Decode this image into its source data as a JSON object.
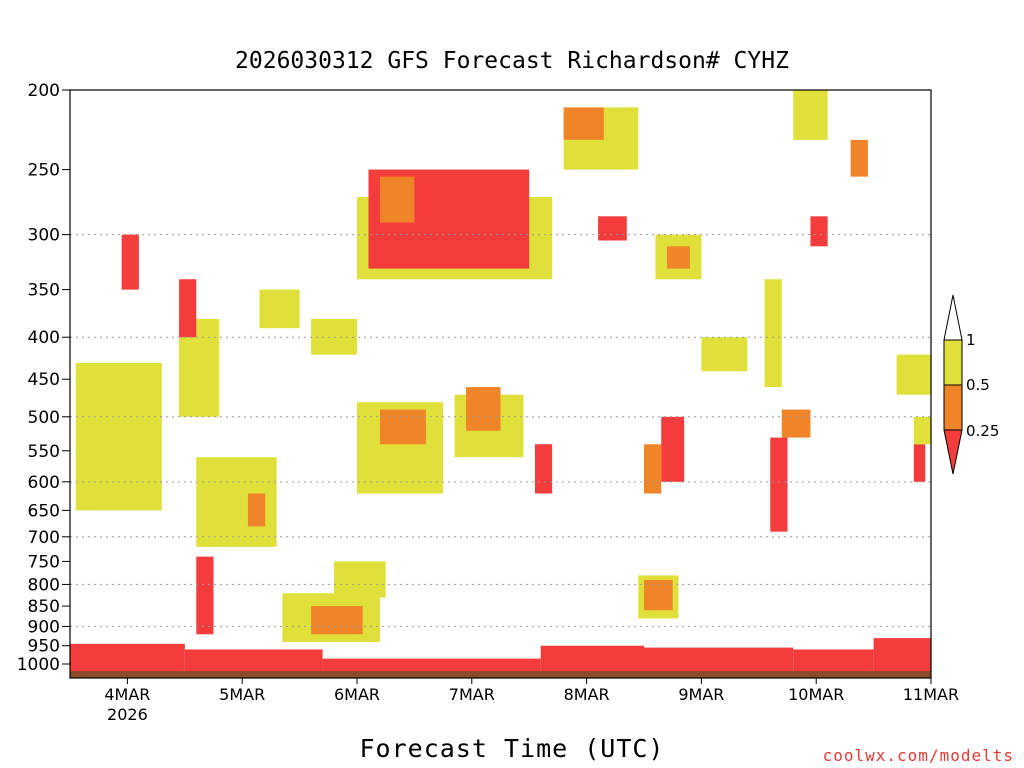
{
  "chart_data": {
    "type": "heatmap",
    "title": "2026030312 GFS Forecast Richardson# CYHZ",
    "xlabel": "Forecast Time (UTC)",
    "ylabel": "",
    "x_range_days": [
      3.5,
      11.0
    ],
    "x_ticks": [
      {
        "value": 4,
        "label": "4MAR",
        "sublabel": "2026"
      },
      {
        "value": 5,
        "label": "5MAR"
      },
      {
        "value": 6,
        "label": "6MAR"
      },
      {
        "value": 7,
        "label": "7MAR"
      },
      {
        "value": 8,
        "label": "8MAR"
      },
      {
        "value": 9,
        "label": "9MAR"
      },
      {
        "value": 10,
        "label": "10MAR"
      },
      {
        "value": 11,
        "label": "11MAR"
      }
    ],
    "y_range_hPa": [
      1040,
      200
    ],
    "y_scale": "log",
    "y_ticks": [
      200,
      250,
      300,
      350,
      400,
      450,
      500,
      550,
      600,
      650,
      700,
      750,
      800,
      850,
      900,
      950,
      1000
    ],
    "gridlines": [
      300,
      400,
      500,
      600,
      700,
      800,
      900
    ],
    "grid": true,
    "colorbar": {
      "labels": [
        "1",
        "0.5",
        "0.25"
      ],
      "bins": [
        {
          "range": "0.5-1",
          "color": "#e0e03a"
        },
        {
          "range": "0.25-0.5",
          "color": "#f08428"
        },
        {
          "range": "<0.25",
          "color": "#f53c3c"
        }
      ],
      "ground_color": "#8b4a2a"
    },
    "regions": [
      {
        "color": "#f53c3c",
        "x": [
          3.5,
          4.5
        ],
        "p": [
          945,
          1030
        ]
      },
      {
        "color": "#f53c3c",
        "x": [
          4.5,
          5.7
        ],
        "p": [
          960,
          1030
        ]
      },
      {
        "color": "#f53c3c",
        "x": [
          5.7,
          7.6
        ],
        "p": [
          985,
          1030
        ]
      },
      {
        "color": "#f53c3c",
        "x": [
          7.6,
          8.5
        ],
        "p": [
          950,
          1030
        ]
      },
      {
        "color": "#f53c3c",
        "x": [
          8.5,
          9.8
        ],
        "p": [
          955,
          1025
        ]
      },
      {
        "color": "#f53c3c",
        "x": [
          9.8,
          10.5
        ],
        "p": [
          960,
          1025
        ]
      },
      {
        "color": "#f53c3c",
        "x": [
          10.5,
          11.0
        ],
        "p": [
          930,
          1025
        ]
      },
      {
        "color": "#e0e03a",
        "x": [
          5.35,
          6.2
        ],
        "p": [
          820,
          940
        ]
      },
      {
        "color": "#e0e03a",
        "x": [
          5.8,
          6.25
        ],
        "p": [
          750,
          830
        ]
      },
      {
        "color": "#f08428",
        "x": [
          5.6,
          6.05
        ],
        "p": [
          850,
          920
        ]
      },
      {
        "color": "#e0e03a",
        "x": [
          3.55,
          4.3
        ],
        "p": [
          430,
          650
        ]
      },
      {
        "color": "#e0e03a",
        "x": [
          4.45,
          4.8
        ],
        "p": [
          380,
          500
        ]
      },
      {
        "color": "#e0e03a",
        "x": [
          4.6,
          5.3
        ],
        "p": [
          560,
          720
        ]
      },
      {
        "color": "#f08428",
        "x": [
          5.05,
          5.2
        ],
        "p": [
          620,
          680
        ]
      },
      {
        "color": "#e0e03a",
        "x": [
          5.15,
          5.5
        ],
        "p": [
          350,
          390
        ]
      },
      {
        "color": "#e0e03a",
        "x": [
          5.6,
          6.0
        ],
        "p": [
          380,
          420
        ]
      },
      {
        "color": "#e0e03a",
        "x": [
          6.0,
          6.75
        ],
        "p": [
          480,
          620
        ]
      },
      {
        "color": "#f08428",
        "x": [
          6.2,
          6.6
        ],
        "p": [
          490,
          540
        ]
      },
      {
        "color": "#e0e03a",
        "x": [
          6.85,
          7.45
        ],
        "p": [
          470,
          560
        ]
      },
      {
        "color": "#f08428",
        "x": [
          6.95,
          7.25
        ],
        "p": [
          460,
          520
        ]
      },
      {
        "color": "#e0e03a",
        "x": [
          6.0,
          7.7
        ],
        "p": [
          270,
          340
        ]
      },
      {
        "color": "#f53c3c",
        "x": [
          6.1,
          7.5
        ],
        "p": [
          250,
          330
        ]
      },
      {
        "color": "#f08428",
        "x": [
          6.2,
          6.5
        ],
        "p": [
          255,
          290
        ]
      },
      {
        "color": "#e0e03a",
        "x": [
          7.8,
          8.45
        ],
        "p": [
          210,
          250
        ]
      },
      {
        "color": "#f08428",
        "x": [
          7.8,
          8.15
        ],
        "p": [
          210,
          230
        ]
      },
      {
        "color": "#f53c3c",
        "x": [
          8.1,
          8.35
        ],
        "p": [
          285,
          305
        ]
      },
      {
        "color": "#e0e03a",
        "x": [
          8.6,
          9.0
        ],
        "p": [
          300,
          340
        ]
      },
      {
        "color": "#f08428",
        "x": [
          8.7,
          8.9
        ],
        "p": [
          310,
          330
        ]
      },
      {
        "color": "#f53c3c",
        "x": [
          8.65,
          8.85
        ],
        "p": [
          500,
          600
        ]
      },
      {
        "color": "#f08428",
        "x": [
          8.5,
          8.65
        ],
        "p": [
          540,
          620
        ]
      },
      {
        "color": "#e0e03a",
        "x": [
          8.45,
          8.8
        ],
        "p": [
          780,
          880
        ]
      },
      {
        "color": "#f08428",
        "x": [
          8.5,
          8.75
        ],
        "p": [
          790,
          860
        ]
      },
      {
        "color": "#e0e03a",
        "x": [
          9.0,
          9.4
        ],
        "p": [
          400,
          440
        ]
      },
      {
        "color": "#f53c3c",
        "x": [
          9.6,
          9.75
        ],
        "p": [
          530,
          690
        ]
      },
      {
        "color": "#f08428",
        "x": [
          9.7,
          9.95
        ],
        "p": [
          490,
          530
        ]
      },
      {
        "color": "#f53c3c",
        "x": [
          9.95,
          10.1
        ],
        "p": [
          285,
          310
        ]
      },
      {
        "color": "#f08428",
        "x": [
          10.3,
          10.45
        ],
        "p": [
          230,
          255
        ]
      },
      {
        "color": "#e0e03a",
        "x": [
          9.8,
          10.1
        ],
        "p": [
          200,
          230
        ]
      },
      {
        "color": "#e0e03a",
        "x": [
          10.7,
          11.0
        ],
        "p": [
          420,
          470
        ]
      },
      {
        "color": "#f53c3c",
        "x": [
          10.85,
          10.95
        ],
        "p": [
          540,
          600
        ]
      },
      {
        "color": "#e0e03a",
        "x": [
          10.85,
          11.0
        ],
        "p": [
          500,
          540
        ]
      },
      {
        "color": "#f53c3c",
        "x": [
          4.45,
          4.6
        ],
        "p": [
          340,
          400
        ]
      },
      {
        "color": "#f53c3c",
        "x": [
          3.95,
          4.1
        ],
        "p": [
          300,
          350
        ]
      },
      {
        "color": "#f53c3c",
        "x": [
          4.6,
          4.75
        ],
        "p": [
          740,
          920
        ]
      },
      {
        "color": "#f53c3c",
        "x": [
          7.55,
          7.7
        ],
        "p": [
          540,
          620
        ]
      },
      {
        "color": "#e0e03a",
        "x": [
          9.55,
          9.7
        ],
        "p": [
          340,
          460
        ]
      }
    ]
  },
  "texts": {
    "title": "2026030312 GFS Forecast Richardson# CYHZ",
    "xaxis_title": "Forecast Time (UTC)",
    "credit": "coolwx.com/modelts"
  }
}
